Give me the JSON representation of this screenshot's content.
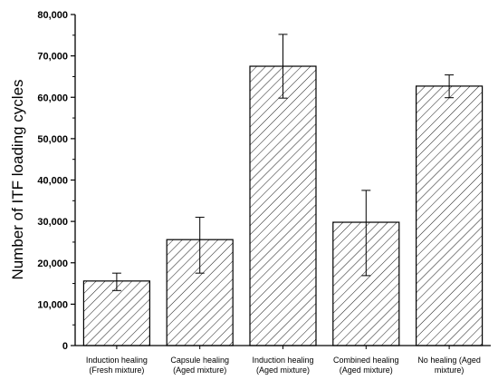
{
  "chart_data": {
    "type": "bar",
    "title": "",
    "xlabel": "",
    "ylabel": "Number of ITF loading cycles",
    "ylim": [
      0,
      80000
    ],
    "yticks": [
      0,
      10000,
      20000,
      30000,
      40000,
      50000,
      60000,
      70000,
      80000
    ],
    "ytick_labels": [
      "0",
      "10,000",
      "20,000",
      "30,000",
      "40,000",
      "50,000",
      "60,000",
      "70,000",
      "80,000"
    ],
    "grid": false,
    "legend": "none",
    "bar_fill": "diagonal-hatch",
    "bar_color": "#000000",
    "categories": [
      [
        "Induction healing",
        "(Fresh mixture)"
      ],
      [
        "Capsule healing",
        "(Aged mixture)"
      ],
      [
        "Induction healing",
        "(Aged mixture)"
      ],
      [
        "Combined healing",
        "(Aged mixture)"
      ],
      [
        "No healing (Aged",
        "mixture)"
      ]
    ],
    "values": [
      15600,
      25600,
      67500,
      29800,
      62700
    ],
    "error_low": [
      13300,
      17500,
      59800,
      16900,
      59900
    ],
    "error_high": [
      17500,
      31000,
      75200,
      37500,
      65400
    ]
  }
}
